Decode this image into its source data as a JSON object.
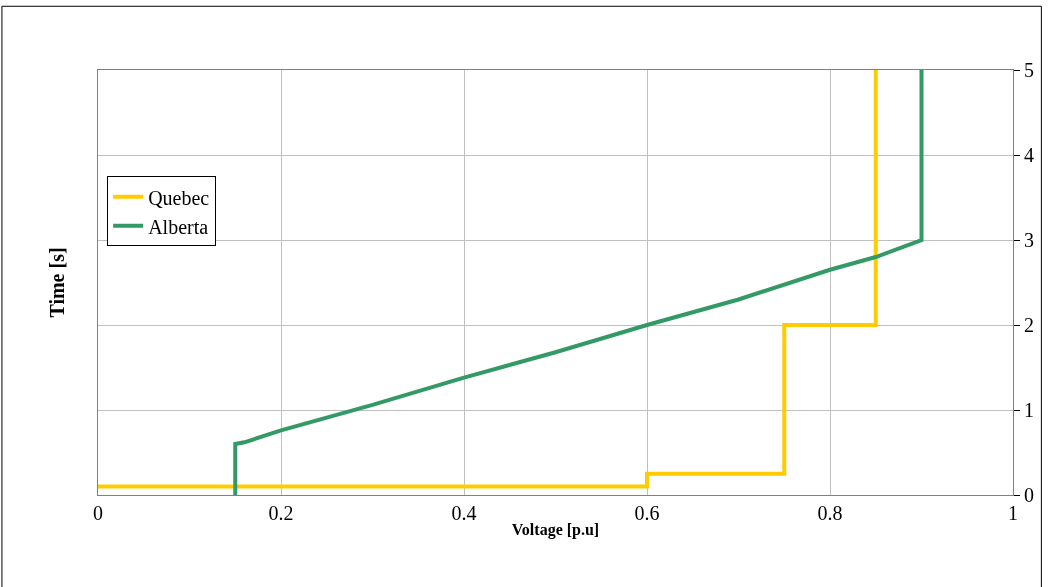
{
  "chart_data": {
    "type": "line",
    "xlabel": "Voltage [p.u]",
    "ylabel": "Time [s]",
    "xlim": [
      0,
      1
    ],
    "xticks": [
      0,
      0.2,
      0.4,
      0.6,
      0.8,
      1
    ],
    "ylim": [
      0,
      5
    ],
    "yticks": [
      0,
      1,
      2,
      3,
      4,
      5
    ],
    "grid": true,
    "legend": "left",
    "series": [
      {
        "name": "Quebec",
        "color": "#ffcc00",
        "type": "step",
        "x": [
          0,
          0.6,
          0.75,
          0.85
        ],
        "values": [
          0.1,
          0.25,
          2,
          5
        ]
      },
      {
        "name": "Alberta",
        "color": "#339966",
        "x": [
          0.15,
          0.15,
          0.16,
          0.2,
          0.3,
          0.4,
          0.5,
          0.6,
          0.7,
          0.8,
          0.85,
          0.9,
          0.9
        ],
        "values": [
          0,
          0.6,
          0.62,
          0.76,
          1.06,
          1.38,
          1.68,
          2.0,
          2.3,
          2.65,
          2.8,
          3.0,
          5
        ]
      }
    ]
  }
}
